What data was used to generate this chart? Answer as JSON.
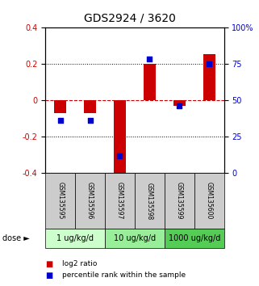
{
  "title": "GDS2924 / 3620",
  "samples": [
    "GSM135595",
    "GSM135596",
    "GSM135597",
    "GSM135598",
    "GSM135599",
    "GSM135600"
  ],
  "log2_ratio": [
    -0.07,
    -0.07,
    -0.42,
    0.2,
    -0.03,
    0.25
  ],
  "percentile_rank": [
    36,
    36,
    12,
    78,
    46,
    75
  ],
  "ylim": [
    -0.4,
    0.4
  ],
  "yticks_left": [
    -0.4,
    -0.2,
    0.0,
    0.2,
    0.4
  ],
  "ytick_labels_left": [
    "-0.4",
    "-0.2",
    "0",
    "0.2",
    "0.4"
  ],
  "ytick_labels_right": [
    "0",
    "25",
    "50",
    "75",
    "100%"
  ],
  "bar_color": "#cc0000",
  "dot_color": "#0000cc",
  "dose_groups": [
    {
      "label": "1 ug/kg/d",
      "samples": [
        0,
        1
      ],
      "color": "#ccffcc"
    },
    {
      "label": "10 ug/kg/d",
      "samples": [
        2,
        3
      ],
      "color": "#99ee99"
    },
    {
      "label": "1000 ug/kg/d",
      "samples": [
        4,
        5
      ],
      "color": "#55cc55"
    }
  ],
  "zero_line_color": "#cc0000",
  "sample_box_color": "#cccccc",
  "title_fontsize": 10,
  "tick_fontsize": 7,
  "label_fontsize": 6,
  "dose_fontsize": 7,
  "legend_fontsize": 6.5,
  "bar_width": 0.4
}
